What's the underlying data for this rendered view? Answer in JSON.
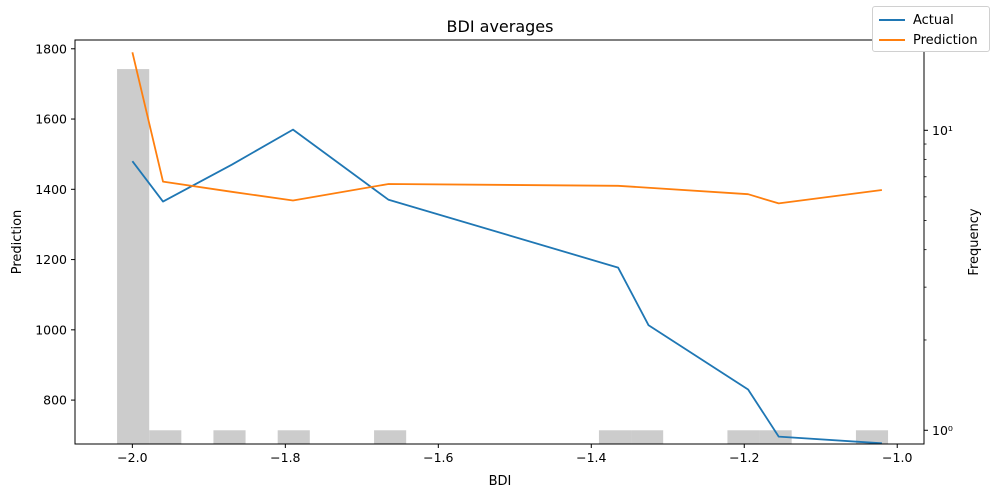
{
  "chart_data": {
    "type": "line",
    "title": "BDI averages",
    "xlabel": "BDI",
    "ylabel": "Prediction",
    "y2label": "Frequency",
    "xlim": [
      -2.075,
      -0.965
    ],
    "ylim": [
      675,
      1825
    ],
    "y2lim": [
      0.9,
      20
    ],
    "y2scale": "log",
    "xticks": [
      -2.0,
      -1.8,
      -1.6,
      -1.4,
      -1.2,
      -1.0
    ],
    "xtick_labels": [
      "−2.0",
      "−1.8",
      "−1.6",
      "−1.4",
      "−1.2",
      "−1.0"
    ],
    "yticks": [
      800,
      1000,
      1200,
      1400,
      1600,
      1800
    ],
    "ytick_labels": [
      "800",
      "1000",
      "1200",
      "1400",
      "1600",
      "1800"
    ],
    "y2ticks": [
      1,
      10
    ],
    "y2tick_labels": [
      "10⁰",
      "10¹"
    ],
    "legend_position": "top-right",
    "series": [
      {
        "name": "Actual",
        "color": "#1f77b4",
        "x": [
          -2.0,
          -1.96,
          -1.87,
          -1.79,
          -1.665,
          -1.365,
          -1.325,
          -1.195,
          -1.155,
          -1.02
        ],
        "y": [
          1480,
          1365,
          1470,
          1570,
          1370,
          1177,
          1013,
          830,
          696,
          677
        ]
      },
      {
        "name": "Prediction",
        "color": "#ff7f0e",
        "x": [
          -2.0,
          -1.96,
          -1.87,
          -1.79,
          -1.665,
          -1.365,
          -1.195,
          -1.155,
          -1.02
        ],
        "y": [
          1790,
          1422,
          1393,
          1368,
          1415,
          1410,
          1386,
          1360,
          1398
        ]
      }
    ],
    "histogram": {
      "name": "Frequency",
      "color": "#cccccc",
      "bins": [
        {
          "x0": -2.02,
          "x1": -1.978,
          "count": 16
        },
        {
          "x0": -1.978,
          "x1": -1.936,
          "count": 1
        },
        {
          "x0": -1.894,
          "x1": -1.852,
          "count": 1
        },
        {
          "x0": -1.81,
          "x1": -1.768,
          "count": 1
        },
        {
          "x0": -1.684,
          "x1": -1.642,
          "count": 1
        },
        {
          "x0": -1.39,
          "x1": -1.348,
          "count": 1
        },
        {
          "x0": -1.348,
          "x1": -1.306,
          "count": 1
        },
        {
          "x0": -1.222,
          "x1": -1.18,
          "count": 1
        },
        {
          "x0": -1.18,
          "x1": -1.138,
          "count": 1
        },
        {
          "x0": -1.054,
          "x1": -1.012,
          "count": 1
        }
      ]
    }
  }
}
